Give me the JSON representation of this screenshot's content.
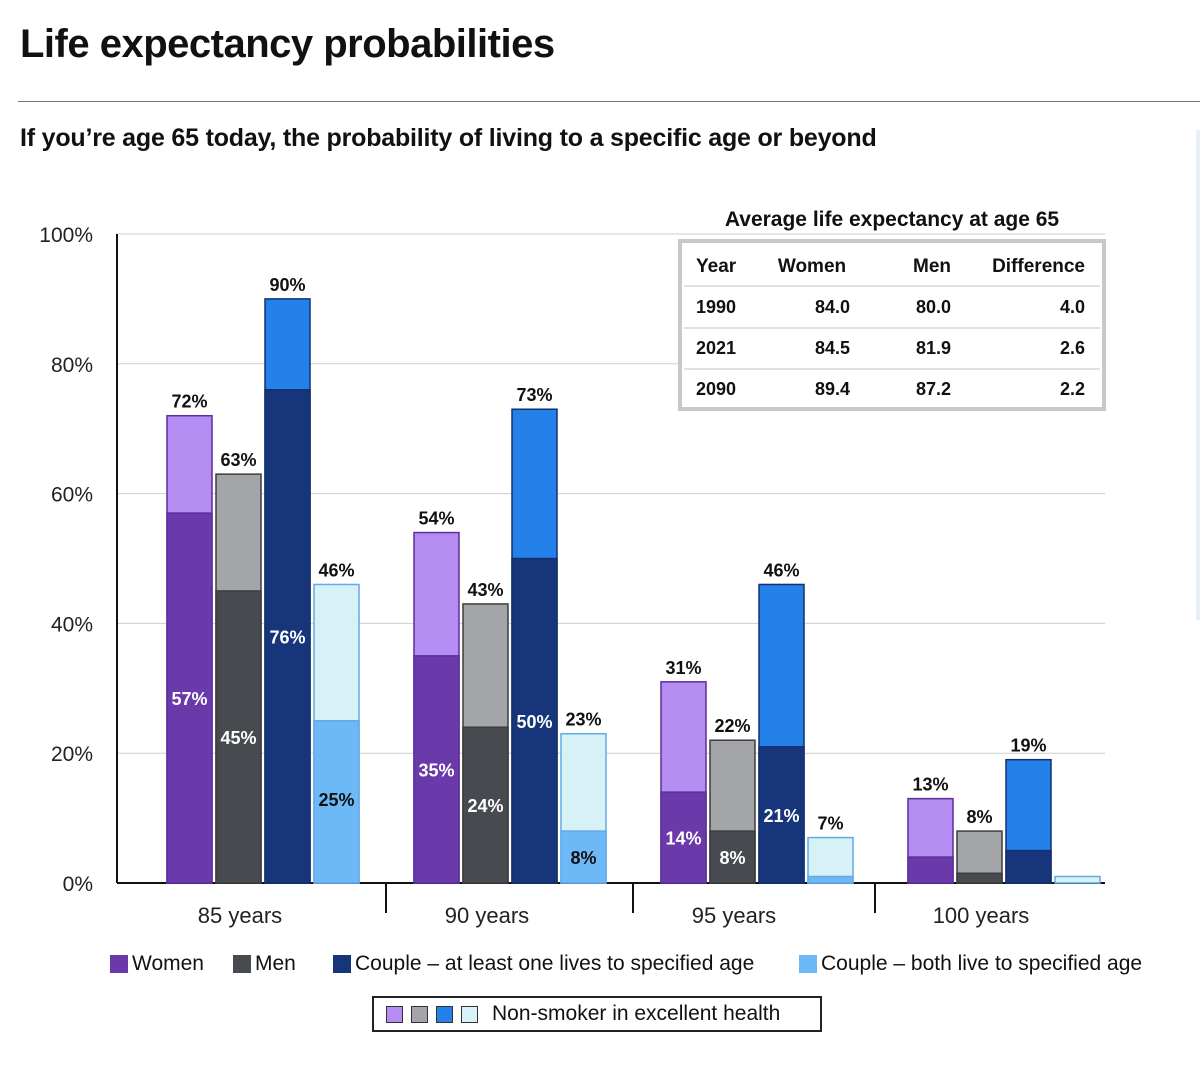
{
  "header": {
    "title": "Life expectancy probabilities",
    "subtitle": "If you’re age 65 today, the probability of living to a specific age or beyond"
  },
  "colors": {
    "women": "#6a3aab",
    "women_ns": "#b48cf2",
    "men": "#474b50",
    "men_ns": "#a3a5a8",
    "couple_one": "#17357a",
    "couple_one_ns": "#2581ea",
    "couple_both": "#6db9f8",
    "couple_both_ns": "#d7f2f6"
  },
  "chart_data": {
    "type": "bar",
    "categories": [
      "85 years",
      "90 years",
      "95 years",
      "100 years"
    ],
    "ylim": [
      0,
      100
    ],
    "yticks": [
      "0%",
      "20%",
      "40%",
      "60%",
      "80%",
      "100%"
    ],
    "grid": true,
    "series": [
      {
        "name": "Women",
        "base": [
          57,
          35,
          14,
          4
        ],
        "nonsmoker": [
          72,
          54,
          31,
          13
        ],
        "base_labels": [
          "57%",
          "35%",
          "14%",
          ""
        ],
        "nonsmoker_labels": [
          "72%",
          "54%",
          "31%",
          "13%"
        ]
      },
      {
        "name": "Men",
        "base": [
          45,
          24,
          8,
          1.5
        ],
        "nonsmoker": [
          63,
          43,
          22,
          8
        ],
        "base_labels": [
          "45%",
          "24%",
          "8%",
          ""
        ],
        "nonsmoker_labels": [
          "63%",
          "43%",
          "22%",
          "8%"
        ]
      },
      {
        "name": "Couple – at least one lives to specified age",
        "base": [
          76,
          50,
          21,
          5
        ],
        "nonsmoker": [
          90,
          73,
          46,
          19
        ],
        "base_labels": [
          "76%",
          "50%",
          "21%",
          ""
        ],
        "nonsmoker_labels": [
          "90%",
          "73%",
          "46%",
          "19%"
        ]
      },
      {
        "name": "Couple – both live to specified age",
        "base": [
          25,
          8,
          1,
          0
        ],
        "nonsmoker": [
          46,
          23,
          7,
          1
        ],
        "base_labels": [
          "25%",
          "8%",
          "",
          ""
        ],
        "nonsmoker_labels": [
          "46%",
          "23%",
          "7%",
          ""
        ]
      }
    ],
    "inset_table": {
      "title": "Average life expectancy at age 65",
      "columns": [
        "Year",
        "Women",
        "Men",
        "Difference"
      ],
      "rows": [
        [
          "1990",
          "84.0",
          "80.0",
          "4.0"
        ],
        [
          "2021",
          "84.5",
          "81.9",
          "2.6"
        ],
        [
          "2090",
          "89.4",
          "87.2",
          "2.2"
        ]
      ]
    },
    "legend": {
      "items": [
        "Women",
        "Men",
        "Couple – at least one lives to specified age",
        "Couple – both live to specified age"
      ],
      "nonsmoker_label": "Non-smoker in excellent health",
      "placement": "bottom"
    }
  }
}
